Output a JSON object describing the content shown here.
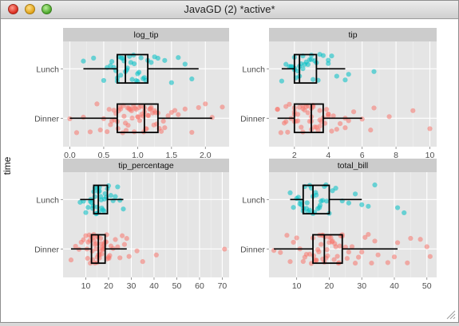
{
  "window": {
    "title": "JavaGD (2) *active*"
  },
  "colors": {
    "lunch": "#00BFC4",
    "dinner": "#F8766D",
    "panel_bg": "#E5E5E5",
    "strip_bg": "#CCCCCC"
  },
  "chart_data": {
    "type": "boxplot-jitter-facets",
    "ylabel": "time",
    "categories": [
      "Lunch",
      "Dinner"
    ],
    "panels": [
      {
        "title": "log_tip",
        "xlim": [
          -0.1,
          2.35
        ],
        "xticks": [
          0.0,
          0.5,
          1.0,
          1.5,
          2.0
        ],
        "xtick_labels": [
          "0.0",
          "0.5",
          "1.0",
          "1.5",
          "2.0"
        ],
        "boxes": {
          "Lunch": {
            "min": 0.2,
            "q1": 0.7,
            "median": 0.82,
            "q3": 1.15,
            "max": 1.9
          },
          "Dinner": {
            "min": 0.0,
            "q1": 0.7,
            "median": 1.1,
            "q3": 1.3,
            "max": 2.1
          }
        },
        "points": {
          "Lunch": [
            0.2,
            0.35,
            0.5,
            0.55,
            0.6,
            0.65,
            0.7,
            0.7,
            0.72,
            0.75,
            0.78,
            0.8,
            0.82,
            0.85,
            0.9,
            0.92,
            0.95,
            1.0,
            1.0,
            1.05,
            1.1,
            1.15,
            1.2,
            1.25,
            1.3,
            1.4,
            1.5,
            1.6,
            1.7,
            1.8,
            0.68,
            0.88,
            0.76,
            0.98,
            1.08,
            0.62,
            0.84,
            0.94,
            1.02,
            1.12
          ],
          "Dinner": [
            0.0,
            0.1,
            0.2,
            0.3,
            0.4,
            0.45,
            0.5,
            0.55,
            0.6,
            0.62,
            0.65,
            0.68,
            0.7,
            0.72,
            0.75,
            0.78,
            0.8,
            0.82,
            0.85,
            0.88,
            0.9,
            0.92,
            0.95,
            0.98,
            1.0,
            1.02,
            1.05,
            1.08,
            1.1,
            1.1,
            1.12,
            1.15,
            1.18,
            1.2,
            1.22,
            1.25,
            1.28,
            1.3,
            1.32,
            1.35,
            1.4,
            1.45,
            1.5,
            1.55,
            1.6,
            1.7,
            1.8,
            1.9,
            2.0,
            2.1,
            2.25,
            0.58,
            0.74,
            0.86,
            0.96,
            1.06,
            1.16,
            1.26,
            1.38,
            0.66,
            0.79,
            0.91,
            1.03,
            1.13,
            1.24,
            0.83,
            0.94,
            1.01,
            1.09,
            1.19,
            0.71,
            0.87
          ]
        }
      },
      {
        "title": "tip",
        "xlim": [
          0.5,
          10.4
        ],
        "xticks": [
          2,
          4,
          6,
          8,
          10
        ],
        "xtick_labels": [
          "2",
          "4",
          "6",
          "8",
          "10"
        ],
        "boxes": {
          "Lunch": {
            "min": 1.25,
            "q1": 2.0,
            "median": 2.3,
            "q3": 3.3,
            "max": 5.0
          },
          "Dinner": {
            "min": 1.0,
            "q1": 2.0,
            "median": 3.0,
            "q3": 3.7,
            "max": 6.0
          }
        },
        "points": {
          "Lunch": [
            1.25,
            1.5,
            1.8,
            2.0,
            2.0,
            2.0,
            2.1,
            2.2,
            2.3,
            2.3,
            2.5,
            2.5,
            2.6,
            2.8,
            3.0,
            3.0,
            3.1,
            3.2,
            3.4,
            3.5,
            3.7,
            4.0,
            4.0,
            4.2,
            4.5,
            5.0,
            5.2,
            6.7,
            1.9,
            2.4,
            2.7,
            3.3,
            1.7,
            2.9
          ],
          "Dinner": [
            1.0,
            1.0,
            1.2,
            1.5,
            1.5,
            1.6,
            1.8,
            2.0,
            2.0,
            2.0,
            2.0,
            2.1,
            2.2,
            2.3,
            2.5,
            2.5,
            2.5,
            2.6,
            2.7,
            2.8,
            3.0,
            3.0,
            3.0,
            3.0,
            3.1,
            3.2,
            3.3,
            3.4,
            3.5,
            3.5,
            3.5,
            3.6,
            3.7,
            4.0,
            4.0,
            4.0,
            4.2,
            4.5,
            5.0,
            5.0,
            5.2,
            5.5,
            6.0,
            6.5,
            6.7,
            7.6,
            9.0,
            10.0,
            1.4,
            1.7,
            2.4,
            2.9,
            3.8,
            4.3,
            4.7,
            2.2,
            3.1,
            2.8,
            3.9
          ]
        }
      },
      {
        "title": "tip_percentage",
        "xlim": [
          0,
          73
        ],
        "xticks": [
          10,
          20,
          30,
          40,
          50,
          60,
          70
        ],
        "xtick_labels": [
          "10",
          "20",
          "30",
          "40",
          "50",
          "60",
          "70"
        ],
        "boxes": {
          "Lunch": {
            "min": 7.5,
            "q1": 13.5,
            "median": 15.5,
            "q3": 19.5,
            "max": 26.5
          },
          "Dinner": {
            "min": 3.5,
            "q1": 12.5,
            "median": 15.5,
            "q3": 18.5,
            "max": 28.0
          }
        },
        "points": {
          "Lunch": [
            7.5,
            9,
            10,
            11,
            12,
            12.5,
            13,
            13.5,
            14,
            14,
            14.5,
            15,
            15,
            15.5,
            16,
            16,
            16.5,
            17,
            17.5,
            18,
            18.5,
            19,
            19.5,
            20,
            21,
            22,
            23,
            24,
            25,
            26.5,
            14.8,
            16.8,
            13.2,
            18.2,
            15.8,
            12.2
          ],
          "Dinner": [
            3.5,
            5.5,
            7,
            8,
            9,
            10,
            10.5,
            11,
            11.5,
            12,
            12.5,
            13,
            13,
            13.5,
            14,
            14,
            14.5,
            15,
            15,
            15,
            15.5,
            16,
            16,
            16.5,
            17,
            17,
            17.5,
            18,
            18,
            18.5,
            19,
            19.5,
            20,
            20.5,
            21,
            22,
            23,
            24,
            25,
            26,
            27,
            28,
            29,
            32.5,
            35,
            41,
            71,
            12.8,
            14.6,
            16.2,
            17.8,
            19.2,
            13.7,
            15.3,
            11.8,
            20.2,
            10.8,
            16.7
          ]
        }
      },
      {
        "title": "total_bill",
        "xlim": [
          1.5,
          53
        ],
        "xticks": [
          10,
          20,
          30,
          40,
          50
        ],
        "xtick_labels": [
          "10",
          "20",
          "30",
          "40",
          "50"
        ],
        "boxes": {
          "Lunch": {
            "min": 8.0,
            "q1": 12.0,
            "median": 15.0,
            "q3": 20.0,
            "max": 30.0
          },
          "Dinner": {
            "min": 3.0,
            "q1": 15.0,
            "median": 18.5,
            "q3": 24.0,
            "max": 41.0
          }
        },
        "points": {
          "Lunch": [
            8,
            9,
            10,
            10.5,
            11,
            11.5,
            12,
            12,
            12.5,
            13,
            13.5,
            14,
            14,
            14.5,
            15,
            15,
            15.5,
            16,
            16.5,
            17,
            17.5,
            18,
            18.5,
            19,
            20,
            21,
            22,
            24,
            26,
            28,
            30,
            32,
            34,
            41,
            43,
            13.2,
            15.8,
            17.2,
            11.2,
            19.2
          ],
          "Dinner": [
            3,
            5,
            7,
            8,
            9,
            10,
            11,
            12,
            13,
            14,
            14.5,
            15,
            15.5,
            16,
            16,
            16.5,
            17,
            17.5,
            18,
            18,
            18.5,
            19,
            19.5,
            20,
            20,
            20.5,
            21,
            21.5,
            22,
            22.5,
            23,
            23.5,
            24,
            24,
            25,
            26,
            27,
            28,
            29,
            30,
            31,
            32,
            33,
            34,
            35,
            38,
            40,
            41,
            44,
            45,
            48,
            50,
            51,
            12.5,
            15.2,
            17.8,
            19.3,
            21.7,
            23.2,
            25.5,
            16.8,
            20.8,
            18.7,
            22.8
          ]
        }
      }
    ]
  }
}
